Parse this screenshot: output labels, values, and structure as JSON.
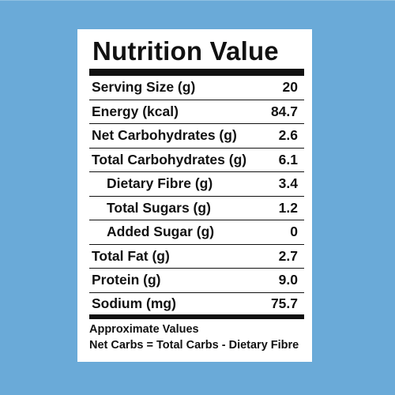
{
  "panel": {
    "title": "Nutrition Value",
    "rows": [
      {
        "name": "Serving Size (g)",
        "value": "20",
        "indent": false
      },
      {
        "name": "Energy (kcal)",
        "value": "84.7",
        "indent": false
      },
      {
        "name": "Net Carbohydrates (g)",
        "value": "2.6",
        "indent": false
      },
      {
        "name": "Total Carbohydrates (g)",
        "value": "6.1",
        "indent": false
      },
      {
        "name": "Dietary Fibre (g)",
        "value": "3.4",
        "indent": true
      },
      {
        "name": "Total Sugars (g)",
        "value": "1.2",
        "indent": true
      },
      {
        "name": "Added Sugar (g)",
        "value": "0",
        "indent": true
      },
      {
        "name": "Total Fat (g)",
        "value": "2.7",
        "indent": false
      },
      {
        "name": "Protein (g)",
        "value": "9.0",
        "indent": false
      },
      {
        "name": "Sodium (mg)",
        "value": "75.7",
        "indent": false
      }
    ],
    "notes": [
      "Approximate Values",
      "Net Carbs = Total Carbs - Dietary Fibre"
    ]
  },
  "colors": {
    "background": "#6aaad8",
    "panel": "#ffffff",
    "text": "#111111"
  }
}
